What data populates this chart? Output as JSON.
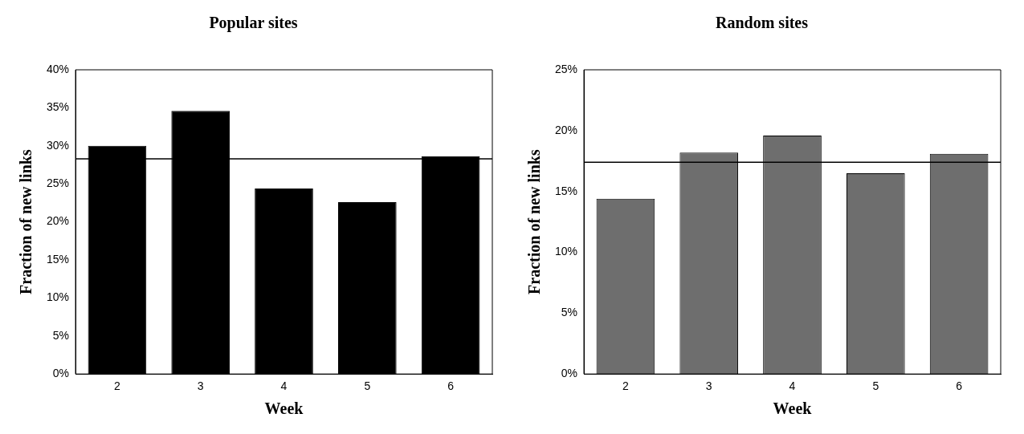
{
  "chart_data": [
    {
      "type": "bar",
      "title": "Popular sites",
      "xlabel": "Week",
      "ylabel": "Fraction of new links",
      "categories": [
        "2",
        "3",
        "4",
        "5",
        "6"
      ],
      "values": [
        30.0,
        34.6,
        24.4,
        22.6,
        28.6
      ],
      "color": "#000000",
      "ylim": [
        0,
        40
      ],
      "yticks": [
        {
          "value": 0,
          "label": "0%"
        },
        {
          "value": 5,
          "label": "5%"
        },
        {
          "value": 10,
          "label": "10%"
        },
        {
          "value": 15,
          "label": "15%"
        },
        {
          "value": 20,
          "label": "20%"
        },
        {
          "value": 25,
          "label": "25%"
        },
        {
          "value": 30,
          "label": "30%"
        },
        {
          "value": 35,
          "label": "35%"
        },
        {
          "value": 40,
          "label": "40%"
        }
      ],
      "ref_lines": [
        {
          "axis": "y",
          "value": 28.3,
          "color": "#000000"
        }
      ],
      "grid": false,
      "legend": false
    },
    {
      "type": "bar",
      "title": "Random sites",
      "xlabel": "Week",
      "ylabel": "Fraction of new links",
      "categories": [
        "2",
        "3",
        "4",
        "5",
        "6"
      ],
      "values": [
        14.4,
        18.2,
        19.6,
        16.5,
        18.1
      ],
      "color": "#6e6e6e",
      "ylim": [
        0,
        25
      ],
      "yticks": [
        {
          "value": 0,
          "label": "0%"
        },
        {
          "value": 5,
          "label": "5%"
        },
        {
          "value": 10,
          "label": "10%"
        },
        {
          "value": 15,
          "label": "15%"
        },
        {
          "value": 20,
          "label": "20%"
        },
        {
          "value": 25,
          "label": "25%"
        }
      ],
      "ref_lines": [
        {
          "axis": "y",
          "value": 17.4,
          "color": "#000000"
        }
      ],
      "grid": false,
      "legend": false
    }
  ]
}
